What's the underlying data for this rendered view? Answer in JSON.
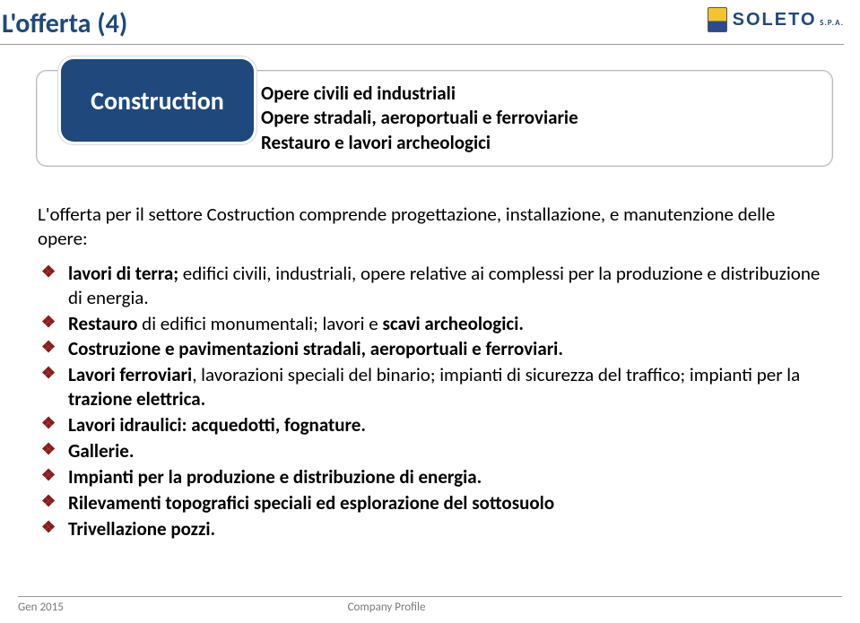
{
  "header": {
    "title": "L'offerta (4)",
    "logo_text": "SOLETO",
    "logo_sub": "S.P.A."
  },
  "diagram": {
    "tab_label": "Construction",
    "lines": [
      "Opere civili ed industriali",
      "Opere stradali, aeroportuali e ferroviarie",
      "Restauro e lavori archeologici"
    ]
  },
  "intro": "L'offerta per il settore Costruction comprende progettazione, installazione, e manutenzione delle opere:",
  "items": [
    {
      "pre": "lavori di terra;",
      "rest": " edifici civili, industriali, opere relative ai complessi per la produzione e distribuzione di energia."
    },
    {
      "pre": "Restauro",
      "rest": " di edifici monumentali; lavori e ",
      "post_b": "scavi archeologici."
    },
    {
      "pre": "Costruzione e pavimentazioni stradali, aeroportuali e ferroviari.",
      "rest": ""
    },
    {
      "pre": "Lavori ferroviari",
      "rest": ", lavorazioni speciali del binario; impianti di sicurezza del traffico; impianti per la ",
      "post_b": "trazione elettrica."
    },
    {
      "pre": "Lavori idraulici: acquedotti, fognature.",
      "rest": ""
    },
    {
      "pre": "Gallerie.",
      "rest": ""
    },
    {
      "pre": "Impianti per la produzione e distribuzione di energia.",
      "rest": ""
    },
    {
      "pre": "Rilevamenti topografici speciali ed esplorazione del sottosuolo",
      "rest": ""
    },
    {
      "pre": "Trivellazione pozzi.",
      "rest": ""
    }
  ],
  "footer": {
    "left": "Gen 2015",
    "center": "Company Profile"
  },
  "colors": {
    "brand": "#1f497d",
    "bullet": "#8b1a1a",
    "rule": "#999999",
    "text": "#000000",
    "footer": "#7a7a7a"
  }
}
